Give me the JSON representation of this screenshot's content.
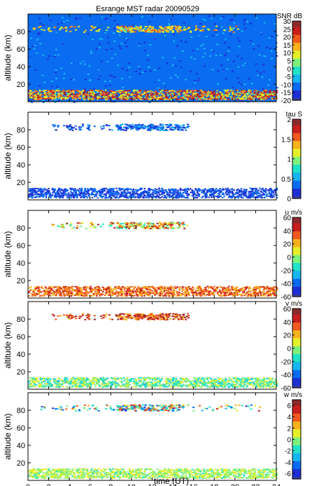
{
  "title": "Esrange MST radar 20090529",
  "xlabel": "time (UT)",
  "x_ticks": [
    0,
    2,
    4,
    6,
    8,
    10,
    12,
    14,
    16,
    18,
    20,
    22,
    24
  ],
  "xlim": [
    0,
    24
  ],
  "ylim": [
    0,
    100
  ],
  "chart_data": [
    {
      "type": "heatmap",
      "ylabel": "altitude (km)",
      "y_ticks": [
        20,
        40,
        60,
        80
      ],
      "colorbar": {
        "label": "SNR dB",
        "range": [
          -20,
          30
        ],
        "ticks": [
          30,
          25,
          20,
          15,
          10,
          5,
          0,
          -5,
          -10,
          -15,
          -20
        ]
      },
      "layers": [
        {
          "name": "tropo-strat",
          "alt_range_km": [
            3,
            14
          ],
          "time_range_h": [
            0,
            24
          ],
          "value_range": [
            5,
            30
          ]
        },
        {
          "name": "pmse",
          "alt_range_km": [
            80,
            87
          ],
          "time_range_h": [
            0,
            20.5
          ],
          "value_range": [
            5,
            20
          ]
        }
      ],
      "background_value": -10
    },
    {
      "type": "heatmap",
      "ylabel": "altitude (km)",
      "y_ticks": [
        20,
        40,
        60,
        80
      ],
      "colorbar": {
        "label": "tau S",
        "range": [
          0,
          2
        ],
        "ticks": [
          2,
          1.5,
          1,
          0.5,
          0
        ]
      },
      "layers": [
        {
          "name": "tropo-strat",
          "alt_range_km": [
            3,
            14
          ],
          "time_range_h": [
            0,
            24
          ],
          "value_range": [
            0.1,
            0.5
          ]
        },
        {
          "name": "pmse",
          "alt_range_km": [
            80,
            87
          ],
          "time_range_h": [
            2,
            15.5
          ],
          "value_range": [
            0.1,
            0.6
          ]
        }
      ]
    },
    {
      "type": "heatmap",
      "ylabel": "altitude (km)",
      "y_ticks": [
        20,
        40,
        60,
        80
      ],
      "colorbar": {
        "label": "u m/s",
        "range": [
          -60,
          60
        ],
        "ticks": [
          60,
          40,
          20,
          0,
          -20,
          -40,
          -60
        ]
      },
      "layers": [
        {
          "name": "tropo-strat",
          "alt_range_km": [
            3,
            14
          ],
          "time_range_h": [
            0,
            24
          ],
          "value_range": [
            20,
            50
          ]
        },
        {
          "name": "pmse",
          "alt_range_km": [
            80,
            87
          ],
          "time_range_h": [
            2,
            15.5
          ],
          "value_range": [
            -20,
            60
          ]
        }
      ]
    },
    {
      "type": "heatmap",
      "ylabel": "altitude (km)",
      "y_ticks": [
        20,
        40,
        60,
        80
      ],
      "colorbar": {
        "label": "v m/s",
        "range": [
          -60,
          60
        ],
        "ticks": [
          60,
          40,
          20,
          0,
          -20,
          -40,
          -60
        ]
      },
      "layers": [
        {
          "name": "tropo-strat",
          "alt_range_km": [
            3,
            14
          ],
          "time_range_h": [
            0,
            24
          ],
          "value_range": [
            -20,
            15
          ]
        },
        {
          "name": "pmse",
          "alt_range_km": [
            80,
            87
          ],
          "time_range_h": [
            2,
            15.5
          ],
          "value_range": [
            20,
            60
          ]
        }
      ]
    },
    {
      "type": "heatmap",
      "ylabel": "altitude (km)",
      "y_ticks": [
        20,
        40,
        60,
        80
      ],
      "colorbar": {
        "label": "w m/s",
        "range": [
          -7,
          7
        ],
        "ticks": [
          6,
          4,
          2,
          0,
          -2,
          -4,
          -6
        ]
      },
      "layers": [
        {
          "name": "tropo-strat",
          "alt_range_km": [
            3,
            14
          ],
          "time_range_h": [
            0,
            24
          ],
          "value_range": [
            -1,
            2
          ]
        },
        {
          "name": "pmse",
          "alt_range_km": [
            80,
            87
          ],
          "time_range_h": [
            1,
            23
          ],
          "value_range": [
            -6,
            6
          ]
        }
      ]
    }
  ],
  "colormap": [
    "#3b3f8f",
    "#1f2fd6",
    "#0a6cf0",
    "#17b6f0",
    "#20e2c8",
    "#7ef07c",
    "#e6ef28",
    "#f7b21e",
    "#f05a1e",
    "#c81e1e",
    "#8a2a2a"
  ]
}
